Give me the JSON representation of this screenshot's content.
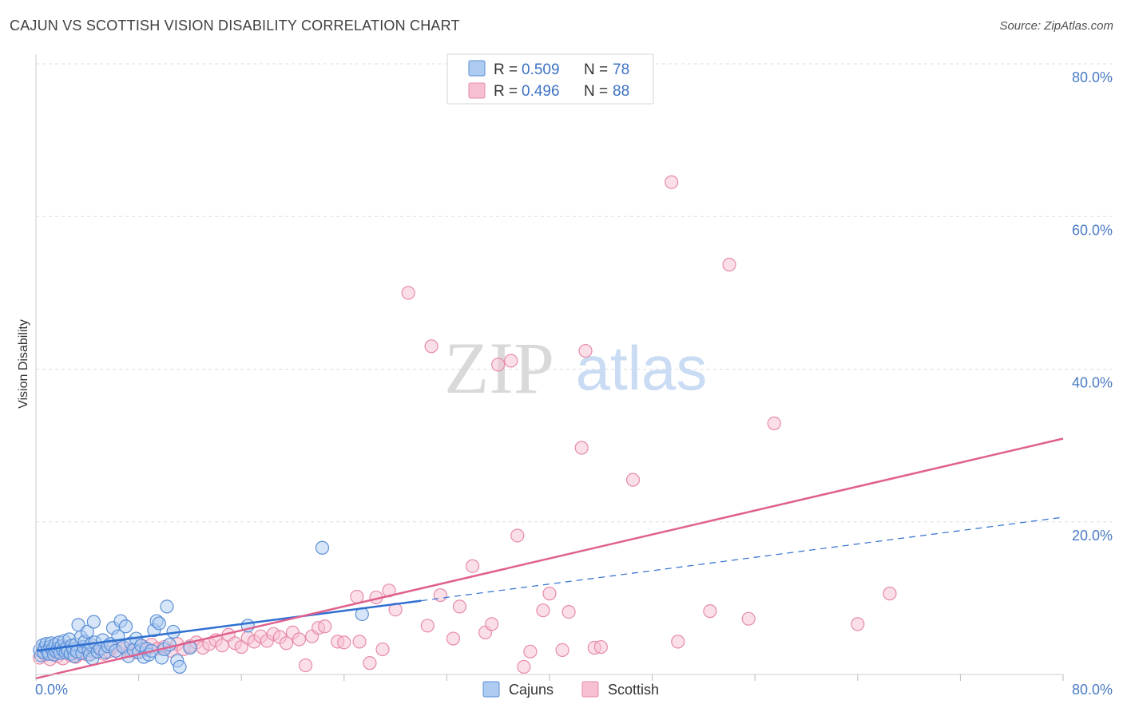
{
  "header": {
    "title": "CAJUN VS SCOTTISH VISION DISABILITY CORRELATION CHART",
    "source": "Source: ZipAtlas.com"
  },
  "watermark": {
    "zip": "ZIP",
    "atlas": "atlas"
  },
  "legend": {
    "rows": [
      {
        "r_label": "R = ",
        "r_value": "0.509",
        "n_label": "N = ",
        "n_value": "78"
      },
      {
        "r_label": "R = ",
        "r_value": "0.496",
        "n_label": "N = ",
        "n_value": "88"
      }
    ]
  },
  "colors": {
    "cajuns_fill": "#aecbf2",
    "cajuns_stroke": "#5b8fd6",
    "cajuns_line": "#2f6fd0",
    "scottish_fill": "#f7c0d2",
    "scottish_stroke": "#e68aa8",
    "scottish_line": "#e0608d",
    "grid": "#dddddd",
    "tick_text": "#4a7bc4"
  },
  "chart_data": {
    "type": "scatter",
    "ylabel": "Vision Disability",
    "xlim": [
      0,
      80
    ],
    "ylim": [
      0,
      80
    ],
    "x_tick_labels": [
      {
        "value": 0,
        "label": "0.0%"
      },
      {
        "value": 80,
        "label": "80.0%"
      }
    ],
    "y_tick_labels": [
      {
        "value": 20,
        "label": "20.0%"
      },
      {
        "value": 40,
        "label": "40.0%"
      },
      {
        "value": 60,
        "label": "60.0%"
      },
      {
        "value": 80,
        "label": "80.0%"
      }
    ],
    "grid": true,
    "legend_position": "top-center",
    "series": [
      {
        "name": "Cajuns",
        "points": [
          [
            0.3,
            3.2
          ],
          [
            0.4,
            2.5
          ],
          [
            0.5,
            3.8
          ],
          [
            0.6,
            2.9
          ],
          [
            0.7,
            3.5
          ],
          [
            0.8,
            4.0
          ],
          [
            0.9,
            3.1
          ],
          [
            1.0,
            2.7
          ],
          [
            1.1,
            3.6
          ],
          [
            1.2,
            4.1
          ],
          [
            1.3,
            3.3
          ],
          [
            1.4,
            2.6
          ],
          [
            1.5,
            3.9
          ],
          [
            1.6,
            3.0
          ],
          [
            1.7,
            3.4
          ],
          [
            1.8,
            4.2
          ],
          [
            1.9,
            2.8
          ],
          [
            2.0,
            3.7
          ],
          [
            2.1,
            3.2
          ],
          [
            2.2,
            4.4
          ],
          [
            2.3,
            2.9
          ],
          [
            2.4,
            3.5
          ],
          [
            2.5,
            3.1
          ],
          [
            2.6,
            4.6
          ],
          [
            2.7,
            2.7
          ],
          [
            2.8,
            3.8
          ],
          [
            2.9,
            3.3
          ],
          [
            3.0,
            2.4
          ],
          [
            3.1,
            3.9
          ],
          [
            3.2,
            3.0
          ],
          [
            3.3,
            6.5
          ],
          [
            3.5,
            4.9
          ],
          [
            3.6,
            2.8
          ],
          [
            3.7,
            3.6
          ],
          [
            3.8,
            4.3
          ],
          [
            4.0,
            5.6
          ],
          [
            4.1,
            3.2
          ],
          [
            4.2,
            2.6
          ],
          [
            4.3,
            3.9
          ],
          [
            4.4,
            2.1
          ],
          [
            4.5,
            6.9
          ],
          [
            4.6,
            4.2
          ],
          [
            4.8,
            3.0
          ],
          [
            5.0,
            3.4
          ],
          [
            5.2,
            4.5
          ],
          [
            5.4,
            2.9
          ],
          [
            5.6,
            3.7
          ],
          [
            5.8,
            4.0
          ],
          [
            6.0,
            6.1
          ],
          [
            6.2,
            3.1
          ],
          [
            6.4,
            5.0
          ],
          [
            6.6,
            7.0
          ],
          [
            6.8,
            3.6
          ],
          [
            7.0,
            6.3
          ],
          [
            7.2,
            2.4
          ],
          [
            7.4,
            4.1
          ],
          [
            7.6,
            3.2
          ],
          [
            7.8,
            4.7
          ],
          [
            8.0,
            2.9
          ],
          [
            8.2,
            3.8
          ],
          [
            8.4,
            2.3
          ],
          [
            8.6,
            3.4
          ],
          [
            8.8,
            2.6
          ],
          [
            9.0,
            3.1
          ],
          [
            9.2,
            5.8
          ],
          [
            9.4,
            7.0
          ],
          [
            9.6,
            6.7
          ],
          [
            9.8,
            2.2
          ],
          [
            10.0,
            3.3
          ],
          [
            10.2,
            8.9
          ],
          [
            10.4,
            3.9
          ],
          [
            10.7,
            5.6
          ],
          [
            11.0,
            1.8
          ],
          [
            11.2,
            1.0
          ],
          [
            12.0,
            3.5
          ],
          [
            16.5,
            6.4
          ],
          [
            22.3,
            16.6
          ],
          [
            25.4,
            7.9
          ]
        ]
      },
      {
        "name": "Scottish",
        "points": [
          [
            0.3,
            2.2
          ],
          [
            0.5,
            3.0
          ],
          [
            0.7,
            2.6
          ],
          [
            0.9,
            3.4
          ],
          [
            1.1,
            2.0
          ],
          [
            1.3,
            2.8
          ],
          [
            1.5,
            3.2
          ],
          [
            1.7,
            2.4
          ],
          [
            1.9,
            3.6
          ],
          [
            2.1,
            2.1
          ],
          [
            2.3,
            2.9
          ],
          [
            2.5,
            3.3
          ],
          [
            2.7,
            2.5
          ],
          [
            2.9,
            3.0
          ],
          [
            3.1,
            2.3
          ],
          [
            3.4,
            2.7
          ],
          [
            3.7,
            3.1
          ],
          [
            4.0,
            2.6
          ],
          [
            4.3,
            3.5
          ],
          [
            4.6,
            2.9
          ],
          [
            5.0,
            3.3
          ],
          [
            5.3,
            2.7
          ],
          [
            5.7,
            3.0
          ],
          [
            6.0,
            3.6
          ],
          [
            6.5,
            2.8
          ],
          [
            7.0,
            3.4
          ],
          [
            7.4,
            3.1
          ],
          [
            7.8,
            2.9
          ],
          [
            8.2,
            3.7
          ],
          [
            8.6,
            3.2
          ],
          [
            9.0,
            3.9
          ],
          [
            9.5,
            3.4
          ],
          [
            10.0,
            3.6
          ],
          [
            10.5,
            3.1
          ],
          [
            11.0,
            4.0
          ],
          [
            11.5,
            3.3
          ],
          [
            12.0,
            3.7
          ],
          [
            12.5,
            4.2
          ],
          [
            13.0,
            3.5
          ],
          [
            13.5,
            4.0
          ],
          [
            14.0,
            4.5
          ],
          [
            14.5,
            3.8
          ],
          [
            15.0,
            5.2
          ],
          [
            15.5,
            4.1
          ],
          [
            16.0,
            3.6
          ],
          [
            16.5,
            4.8
          ],
          [
            17.0,
            4.3
          ],
          [
            17.5,
            5.0
          ],
          [
            18.0,
            4.4
          ],
          [
            18.5,
            5.3
          ],
          [
            19.0,
            4.9
          ],
          [
            19.5,
            4.1
          ],
          [
            20.0,
            5.5
          ],
          [
            20.5,
            4.6
          ],
          [
            21.0,
            1.2
          ],
          [
            21.5,
            5.0
          ],
          [
            22.0,
            6.1
          ],
          [
            22.5,
            6.3
          ],
          [
            23.5,
            4.3
          ],
          [
            24.0,
            4.2
          ],
          [
            25.0,
            10.2
          ],
          [
            25.2,
            4.3
          ],
          [
            26.0,
            1.5
          ],
          [
            26.5,
            10.1
          ],
          [
            27.0,
            3.3
          ],
          [
            27.5,
            11.0
          ],
          [
            28.0,
            8.5
          ],
          [
            29.0,
            50.0
          ],
          [
            30.5,
            6.4
          ],
          [
            30.8,
            43.0
          ],
          [
            31.5,
            10.4
          ],
          [
            32.5,
            4.7
          ],
          [
            33.0,
            8.9
          ],
          [
            34.0,
            14.2
          ],
          [
            35.0,
            5.5
          ],
          [
            35.5,
            6.6
          ],
          [
            36.0,
            40.6
          ],
          [
            37.0,
            41.1
          ],
          [
            37.5,
            18.2
          ],
          [
            38.0,
            1.0
          ],
          [
            38.5,
            3.0
          ],
          [
            39.5,
            8.4
          ],
          [
            40.0,
            10.6
          ],
          [
            41.0,
            3.2
          ],
          [
            42.5,
            29.7
          ],
          [
            43.5,
            3.5
          ],
          [
            44.0,
            3.6
          ],
          [
            46.5,
            25.5
          ]
        ]
      }
    ],
    "extra_scottish_points": [
      [
        42.8,
        42.4
      ],
      [
        41.5,
        8.2
      ],
      [
        49.5,
        64.5
      ],
      [
        50.0,
        4.3
      ],
      [
        54.0,
        53.7
      ],
      [
        52.5,
        8.3
      ],
      [
        55.5,
        7.3
      ],
      [
        57.5,
        32.9
      ],
      [
        64.0,
        6.6
      ],
      [
        66.5,
        10.6
      ]
    ],
    "trendlines": [
      {
        "series": "Cajuns",
        "x_start": 0,
        "y_start": 3.1,
        "x_solid_end": 30,
        "x_end": 80,
        "y_end": 20.6
      },
      {
        "series": "Scottish",
        "x_start": 0,
        "y_start": -0.5,
        "x_end": 80,
        "y_end": 30.9
      }
    ]
  },
  "bottom_legend": {
    "items": [
      {
        "label": "Cajuns"
      },
      {
        "label": "Scottish"
      }
    ]
  }
}
